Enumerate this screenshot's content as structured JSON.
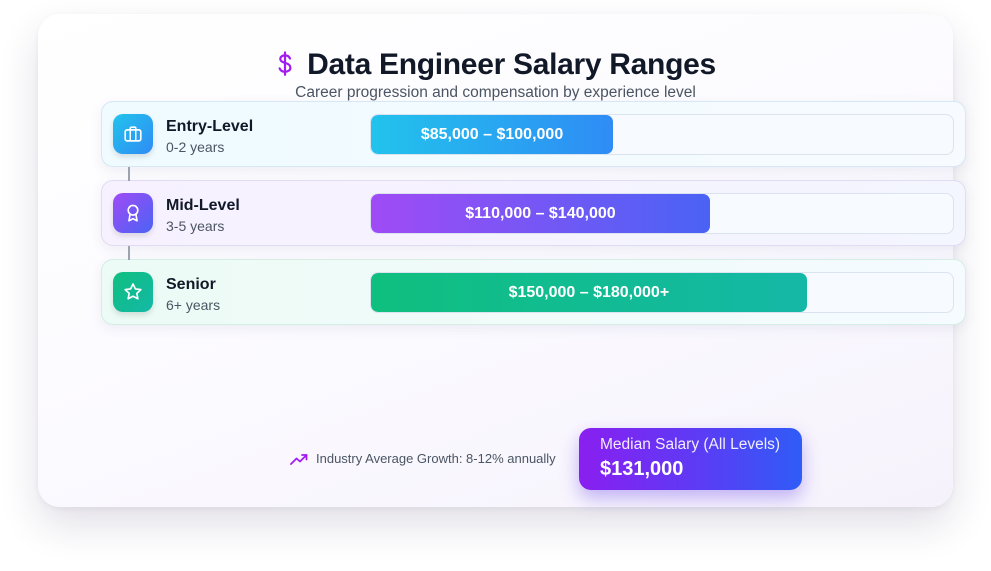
{
  "header": {
    "title": "Data Engineer Salary Ranges",
    "subtitle": "Career progression and compensation by experience level",
    "accent_color": "#a21cf2"
  },
  "chart_data": {
    "type": "bar",
    "orientation": "horizontal",
    "title": "Data Engineer Salary Ranges",
    "subtitle": "Career progression and compensation by experience level",
    "categories": [
      "Entry-Level",
      "Mid-Level",
      "Senior"
    ],
    "levels": [
      {
        "name": "Entry-Level",
        "years": "0-2 years",
        "range_label": "$85,000 – $100,000",
        "min": 85000,
        "max": 100000,
        "icon": "briefcase-icon",
        "colors": [
          "#22c3ec",
          "#2f8cf5"
        ]
      },
      {
        "name": "Mid-Level",
        "years": "3-5 years",
        "range_label": "$110,000 – $140,000",
        "min": 110000,
        "max": 140000,
        "icon": "award-icon",
        "colors": [
          "#a04bf5",
          "#4a63f5"
        ]
      },
      {
        "name": "Senior",
        "years": "6+ years",
        "range_label": "$150,000 – $180,000+",
        "min": 150000,
        "max": 180000,
        "icon": "star-icon",
        "colors": [
          "#0fbf7f",
          "#14b8a6"
        ]
      }
    ],
    "xlim": [
      0,
      240000
    ],
    "grid": false,
    "legend": "none"
  },
  "footer": {
    "growth_text": "Industry Average Growth: 8-12% annually",
    "median_label": "Median Salary (All Levels)",
    "median_value": "$131,000"
  }
}
